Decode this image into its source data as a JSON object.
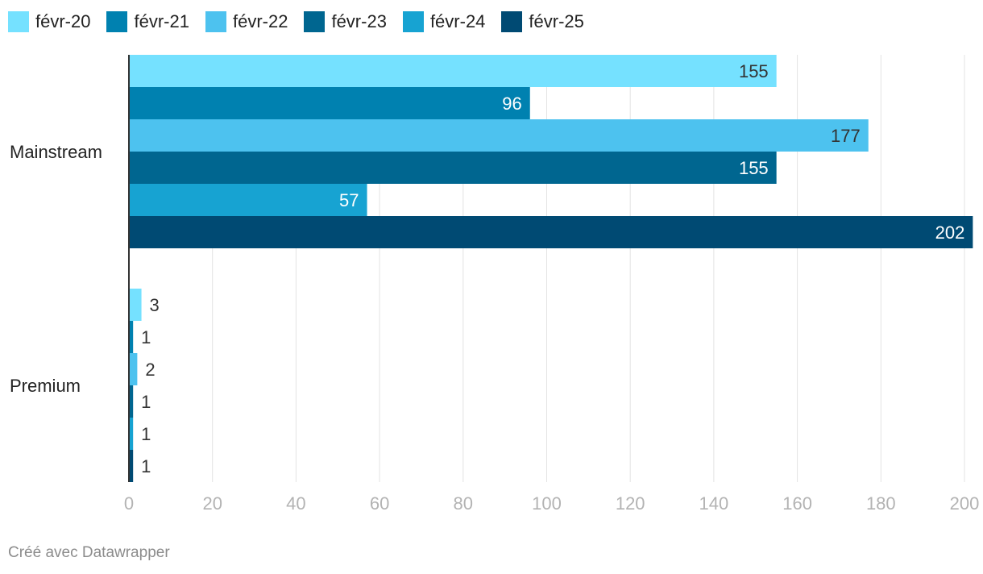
{
  "chart_data": {
    "type": "bar",
    "orientation": "horizontal",
    "categories": [
      "Mainstream",
      "Premium"
    ],
    "series": [
      {
        "name": "févr-20",
        "color": "#75e1ff",
        "values": [
          155,
          3
        ]
      },
      {
        "name": "févr-21",
        "color": "#0081b0",
        "values": [
          96,
          1
        ]
      },
      {
        "name": "févr-22",
        "color": "#4dc2ef",
        "values": [
          177,
          2
        ]
      },
      {
        "name": "févr-23",
        "color": "#006690",
        "values": [
          155,
          1
        ]
      },
      {
        "name": "févr-24",
        "color": "#17a3d2",
        "values": [
          57,
          1
        ]
      },
      {
        "name": "févr-25",
        "color": "#004a73",
        "values": [
          202,
          1
        ]
      }
    ],
    "x_ticks": [
      "0",
      "20",
      "40",
      "60",
      "80",
      "100",
      "120",
      "140",
      "160",
      "180",
      "200"
    ],
    "xlim": [
      0,
      200
    ],
    "grid": true,
    "legend_position": "top-left",
    "title": "",
    "xlabel": "",
    "ylabel": ""
  },
  "footer": {
    "credit": "Créé avec Datawrapper"
  }
}
